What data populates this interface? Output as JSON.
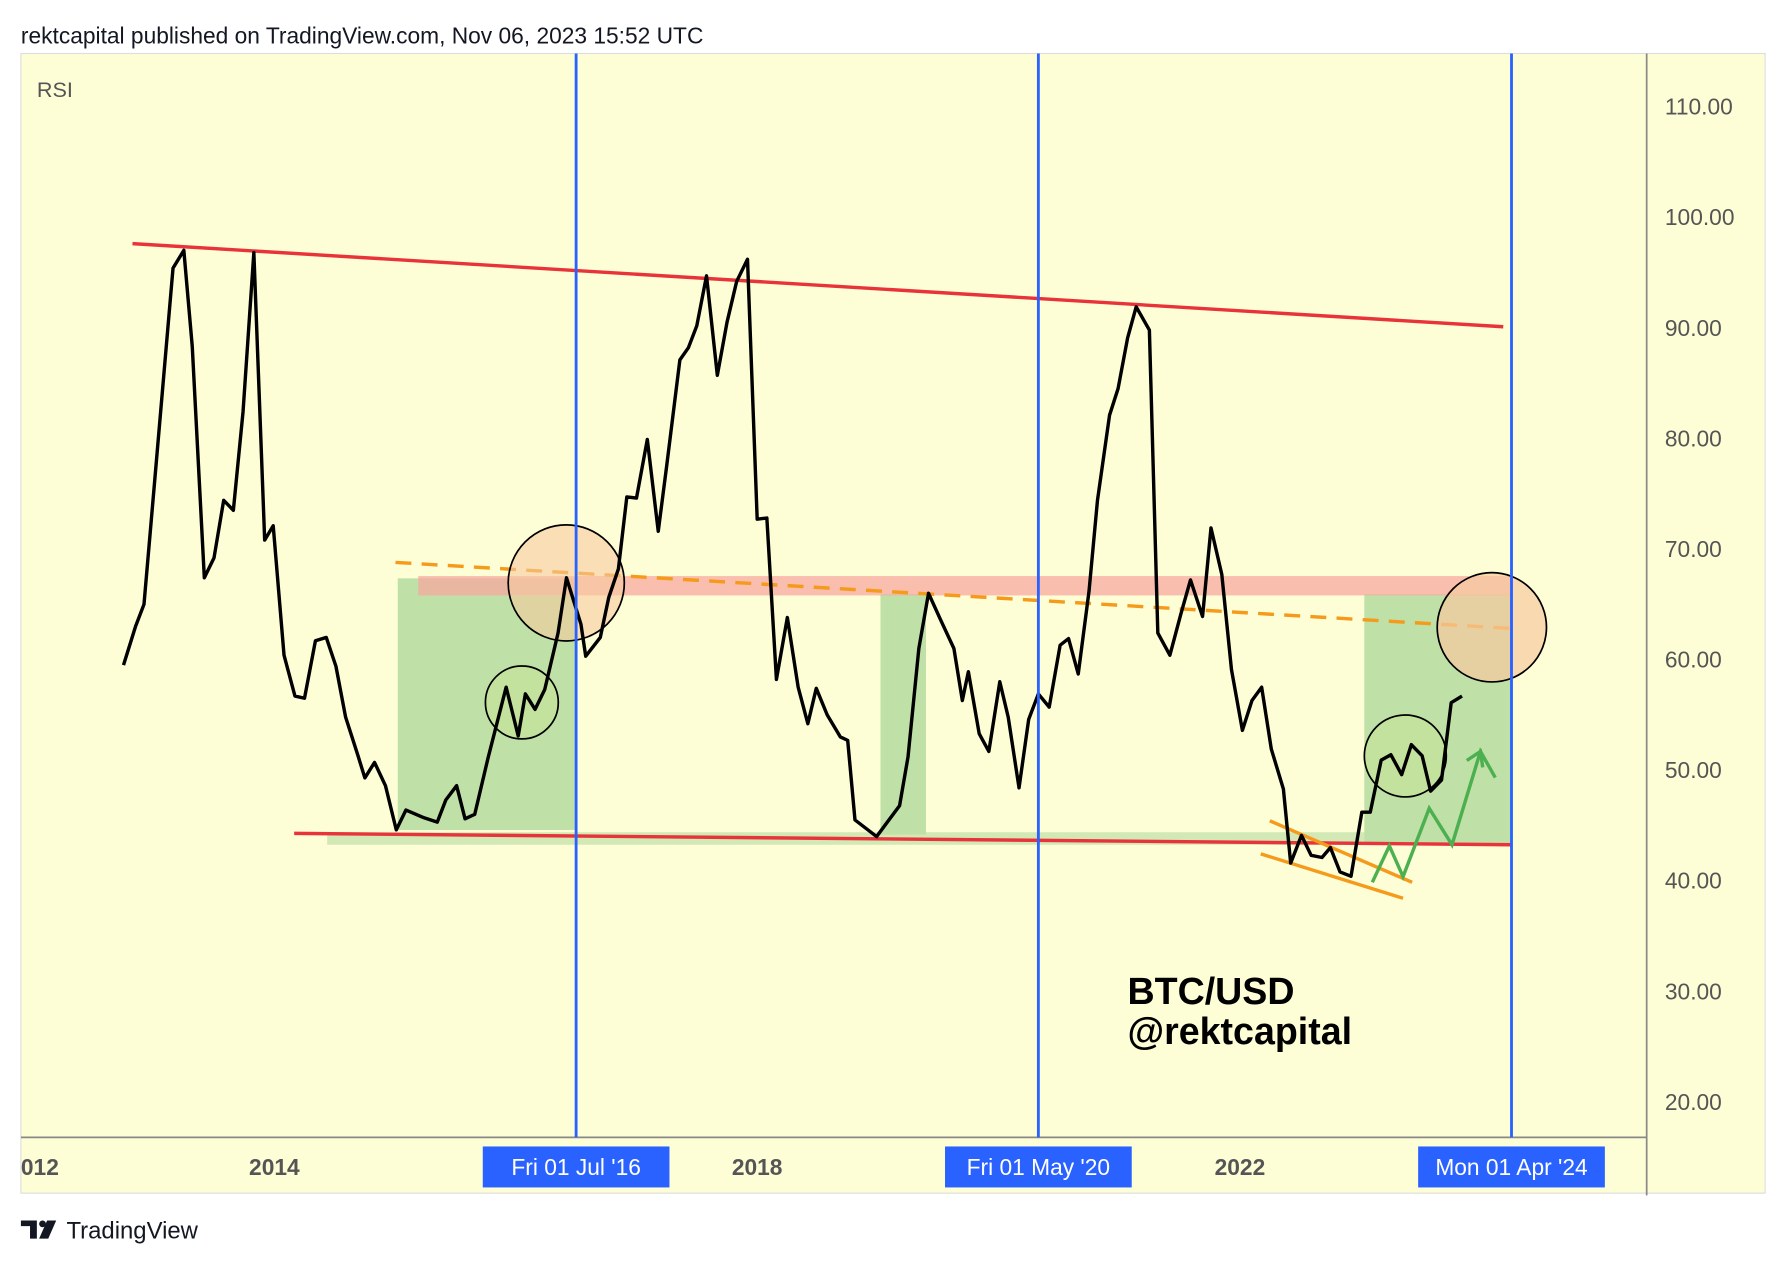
{
  "header": "rektcapital published on TradingView.com, Nov 06, 2023 15:52 UTC",
  "footer": "TradingView",
  "chart_data": {
    "type": "line",
    "annotation": [
      "BTC/USD",
      "@rektcapital"
    ],
    "xlim": [
      2011.9,
      2025.37
    ],
    "xticks": [
      {
        "value": 2012,
        "label": "012"
      },
      2014,
      2018,
      2022
    ],
    "markers": [
      {
        "value": 2016.5,
        "label": "Fri 01 Jul '16"
      },
      {
        "value": 2020.33,
        "label": "Fri 01 May '20"
      },
      {
        "value": 2024.25,
        "label": "Mon 01 Apr '24"
      }
    ],
    "ylim": [
      16.8,
      114.8
    ],
    "yticks": [
      {
        "value": 20,
        "label": "20.00"
      },
      {
        "value": 30,
        "label": "30.00"
      },
      {
        "value": 40,
        "label": "40.00"
      },
      {
        "value": 50,
        "label": "50.00"
      },
      {
        "value": 60,
        "label": "60.00"
      },
      {
        "value": 70,
        "label": "70.00"
      },
      {
        "value": 80,
        "label": "80.00"
      },
      {
        "value": 90,
        "label": "90.00"
      },
      {
        "value": 100,
        "label": "100.00"
      },
      {
        "value": 110,
        "label": "110.00"
      }
    ],
    "grid": false,
    "x": [
      2012.75,
      2012.85,
      2012.92,
      2013.01,
      2013.16,
      2013.25,
      2013.32,
      2013.42,
      2013.5,
      2013.58,
      2013.66,
      2013.74,
      2013.83,
      2013.92,
      2013.99,
      2014.08,
      2014.17,
      2014.25,
      2014.34,
      2014.43,
      2014.51,
      2014.59,
      2014.69,
      2014.75,
      2014.83,
      2014.92,
      2015.01,
      2015.09,
      2015.24,
      2015.35,
      2015.42,
      2015.51,
      2015.58,
      2015.66,
      2015.77,
      2015.92,
      2016.02,
      2016.08,
      2016.16,
      2016.24,
      2016.35,
      2016.42,
      2016.54,
      2016.58,
      2016.7,
      2016.77,
      2016.85,
      2016.92,
      2017.0,
      2017.09,
      2017.18,
      2017.25,
      2017.36,
      2017.43,
      2017.5,
      2017.58,
      2017.67,
      2017.75,
      2017.83,
      2017.92,
      2018.0,
      2018.08,
      2018.16,
      2018.25,
      2018.34,
      2018.42,
      2018.49,
      2018.58,
      2018.69,
      2018.75,
      2018.81,
      2018.99,
      2019.18,
      2019.25,
      2019.34,
      2019.42,
      2019.52,
      2019.63,
      2019.7,
      2019.75,
      2019.84,
      2019.92,
      2020.01,
      2020.08,
      2020.17,
      2020.25,
      2020.33,
      2020.42,
      2020.51,
      2020.58,
      2020.66,
      2020.75,
      2020.82,
      2020.92,
      2020.99,
      2021.07,
      2021.14,
      2021.25,
      2021.32,
      2021.42,
      2021.51,
      2021.59,
      2021.69,
      2021.76,
      2021.85,
      2021.93,
      2022.02,
      2022.1,
      2022.18,
      2022.26,
      2022.36,
      2022.42,
      2022.51,
      2022.59,
      2022.68,
      2022.75,
      2022.83,
      2022.92,
      2023.01,
      2023.08,
      2023.17,
      2023.25,
      2023.34,
      2023.42,
      2023.51,
      2023.58,
      2023.67,
      2023.75,
      2023.84
    ],
    "series": [
      {
        "name": "RSI",
        "color": "#000000",
        "values": [
          59.5,
          63.0,
          65.0,
          76.4,
          95.4,
          97.0,
          88.3,
          67.4,
          69.2,
          74.4,
          73.5,
          82.4,
          96.8,
          70.8,
          72.1,
          60.4,
          56.7,
          56.5,
          61.7,
          62.0,
          59.4,
          54.8,
          51.4,
          49.3,
          50.7,
          48.6,
          44.6,
          46.4,
          45.7,
          45.3,
          47.3,
          48.6,
          45.6,
          46.0,
          51.1,
          57.5,
          53.1,
          56.9,
          55.5,
          57.3,
          62.4,
          67.4,
          63.2,
          60.3,
          62.0,
          65.6,
          68.2,
          74.7,
          74.6,
          79.9,
          71.6,
          77.5,
          87.1,
          88.2,
          90.2,
          94.7,
          85.7,
          90.5,
          94.2,
          96.2,
          72.7,
          72.8,
          58.2,
          63.8,
          57.5,
          54.2,
          57.4,
          55.0,
          53.0,
          52.7,
          45.5,
          44.0,
          46.8,
          51.2,
          61.0,
          66.0,
          63.6,
          61.0,
          56.3,
          58.9,
          53.3,
          51.7,
          58.0,
          54.8,
          48.4,
          54.6,
          56.9,
          55.7,
          61.3,
          61.9,
          58.7,
          66.2,
          74.4,
          82.1,
          84.5,
          89.1,
          91.9,
          89.8,
          62.4,
          60.4,
          64.1,
          67.2,
          63.9,
          71.9,
          67.7,
          59.1,
          53.6,
          56.3,
          57.5,
          51.9,
          48.3,
          41.6,
          44.1,
          42.3,
          42.1,
          43.0,
          40.8,
          40.4,
          46.2,
          46.2,
          50.9,
          51.4,
          49.6,
          52.3,
          51.3,
          48.1,
          49.1,
          56.1,
          56.7
        ]
      }
    ]
  }
}
